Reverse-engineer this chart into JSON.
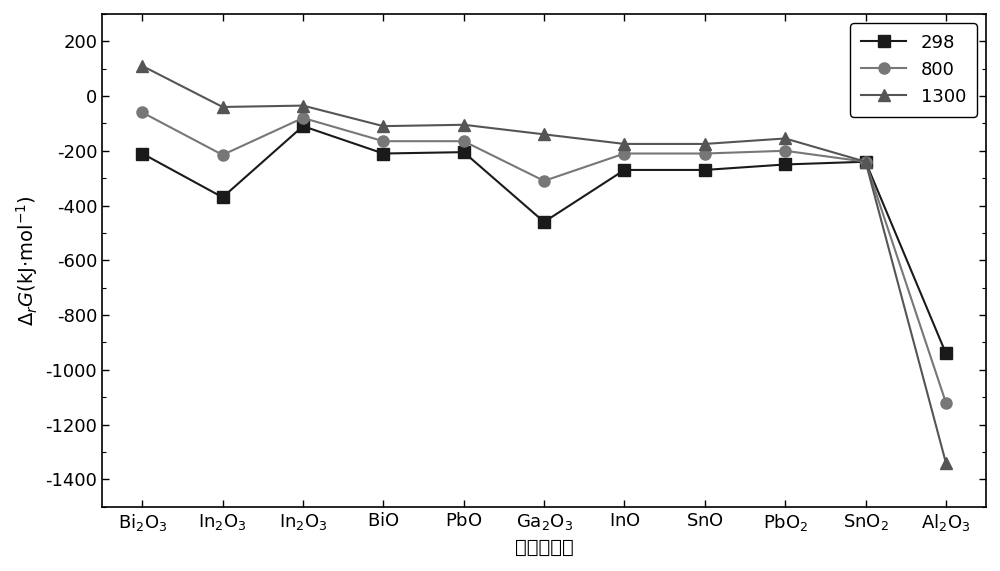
{
  "categories_latex": [
    "$\\mathrm{Bi_2O_3}$",
    "$\\mathrm{In_2O_3}$",
    "$\\mathrm{In_2O_3}$",
    "$\\mathrm{BiO}$",
    "$\\mathrm{PbO}$",
    "$\\mathrm{Ga_2O_3}$",
    "$\\mathrm{InO}$",
    "$\\mathrm{SnO}$",
    "$\\mathrm{PbO_2}$",
    "$\\mathrm{SnO_2}$",
    "$\\mathrm{Al_2O_3}$"
  ],
  "series": {
    "298": [
      -210,
      -370,
      -110,
      -210,
      -205,
      -460,
      -270,
      -270,
      -250,
      -240,
      -940
    ],
    "800": [
      -60,
      -215,
      -80,
      -165,
      -165,
      -310,
      -210,
      -210,
      -200,
      -240,
      -1120
    ],
    "1300": [
      110,
      -40,
      -35,
      -110,
      -105,
      -140,
      -175,
      -175,
      -155,
      -240,
      -1340
    ]
  },
  "colors": {
    "298": "#1a1a1a",
    "800": "#777777",
    "1300": "#555555"
  },
  "markers": {
    "298": "s",
    "800": "o",
    "1300": "^"
  },
  "xlabel_chinese": "金属氧化物",
  "ylim": [
    -1500,
    300
  ],
  "yticks": [
    200,
    0,
    -200,
    -400,
    -600,
    -800,
    -1000,
    -1200,
    -1400
  ],
  "legend_loc": "upper right",
  "figsize": [
    10.0,
    5.71
  ],
  "dpi": 100,
  "background_color": "#ffffff",
  "linewidth": 1.5,
  "markersize": 8,
  "tick_fontsize": 13,
  "label_fontsize": 14
}
